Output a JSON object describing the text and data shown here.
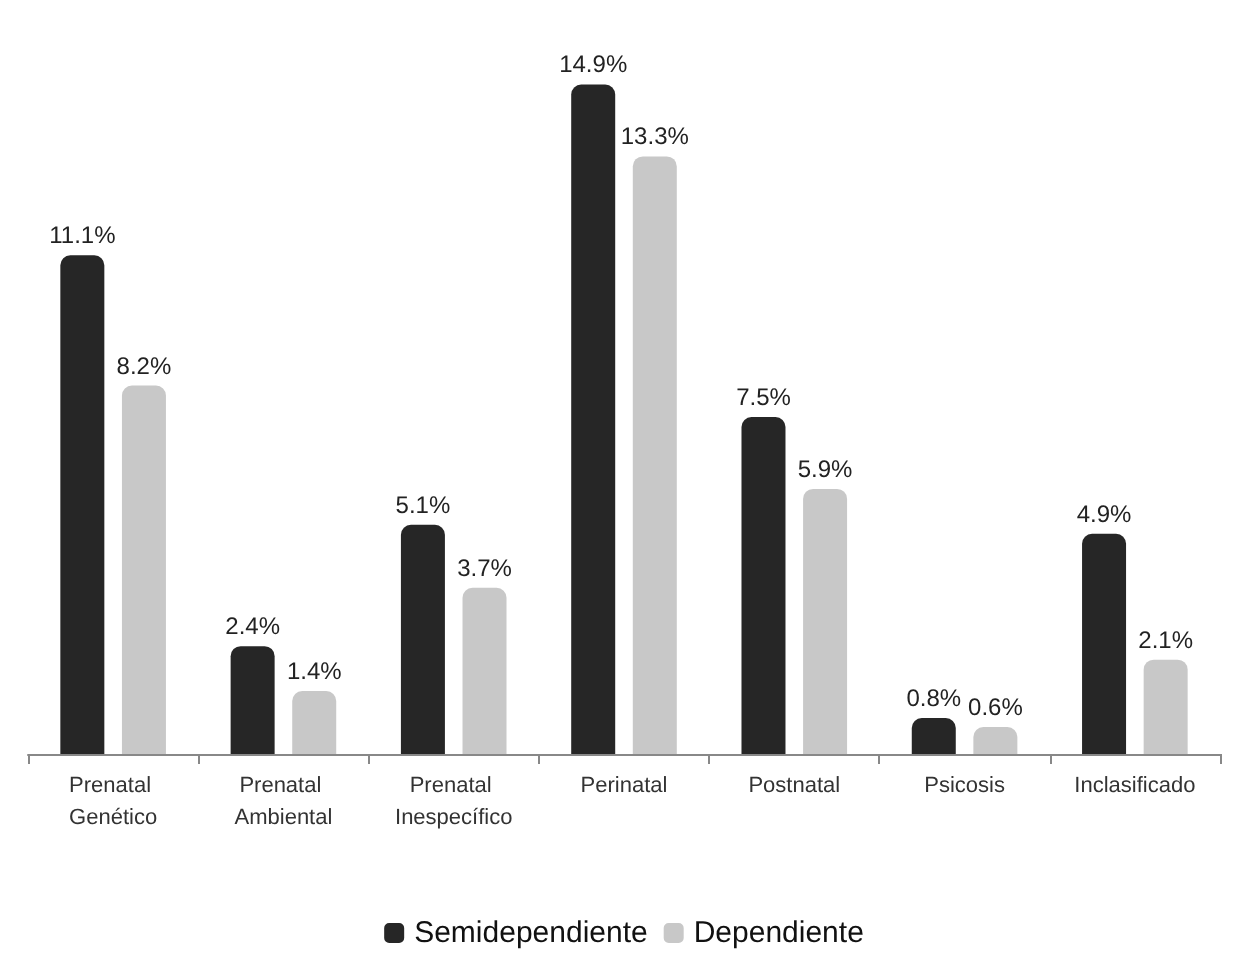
{
  "chart_data": {
    "type": "bar",
    "categories": [
      "Prenatal Genético",
      "Prenatal Ambiental",
      "Prenatal Inespecífico",
      "Perinatal",
      "Postnatal",
      "Psicosis",
      "Inclasificado"
    ],
    "series": [
      {
        "name": "Semidependiente",
        "color": "#262626",
        "values": [
          11.1,
          2.4,
          5.1,
          14.9,
          7.5,
          0.8,
          4.9
        ],
        "value_labels": [
          "11.1%",
          "2.4%",
          "5.1%",
          "14.9%",
          "7.5%",
          "0.8%",
          "4.9%"
        ]
      },
      {
        "name": "Dependiente",
        "color": "#c8c8c8",
        "values": [
          8.2,
          1.4,
          3.7,
          13.3,
          5.9,
          0.6,
          2.1
        ],
        "value_labels": [
          "8.2%",
          "1.4%",
          "3.7%",
          "13.3%",
          "5.9%",
          "0.6%",
          "2.1%"
        ]
      }
    ],
    "legend": "bottom"
  }
}
